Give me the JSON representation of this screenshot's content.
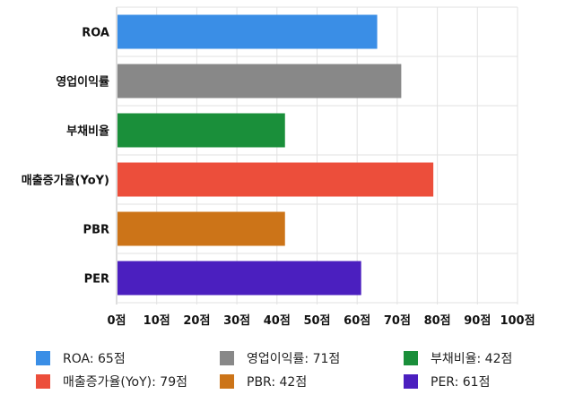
{
  "chart_data": {
    "type": "bar",
    "orientation": "horizontal",
    "categories": [
      "ROA",
      "영업이익률",
      "부채비율",
      "매출증가율(YoY)",
      "PBR",
      "PER"
    ],
    "values": [
      65,
      71,
      42,
      79,
      42,
      61
    ],
    "colors": [
      "#3a8ee6",
      "#888888",
      "#1a8f3a",
      "#ec4e3b",
      "#cc7418",
      "#4b1fbf"
    ],
    "x_ticks": [
      "0점",
      "10점",
      "20점",
      "30점",
      "40점",
      "50점",
      "60점",
      "70점",
      "80점",
      "90점",
      "100점"
    ],
    "xlim": [
      0,
      100
    ],
    "grid": true,
    "legend_position": "bottom",
    "legend": [
      {
        "label": "ROA: 65점",
        "color": "#3a8ee6"
      },
      {
        "label": "영업이익률: 71점",
        "color": "#888888"
      },
      {
        "label": "부채비율: 42점",
        "color": "#1a8f3a"
      },
      {
        "label": "매출증가율(YoY): 79점",
        "color": "#ec4e3b"
      },
      {
        "label": "PBR: 42점",
        "color": "#cc7418"
      },
      {
        "label": "PER: 61점",
        "color": "#4b1fbf"
      }
    ]
  }
}
